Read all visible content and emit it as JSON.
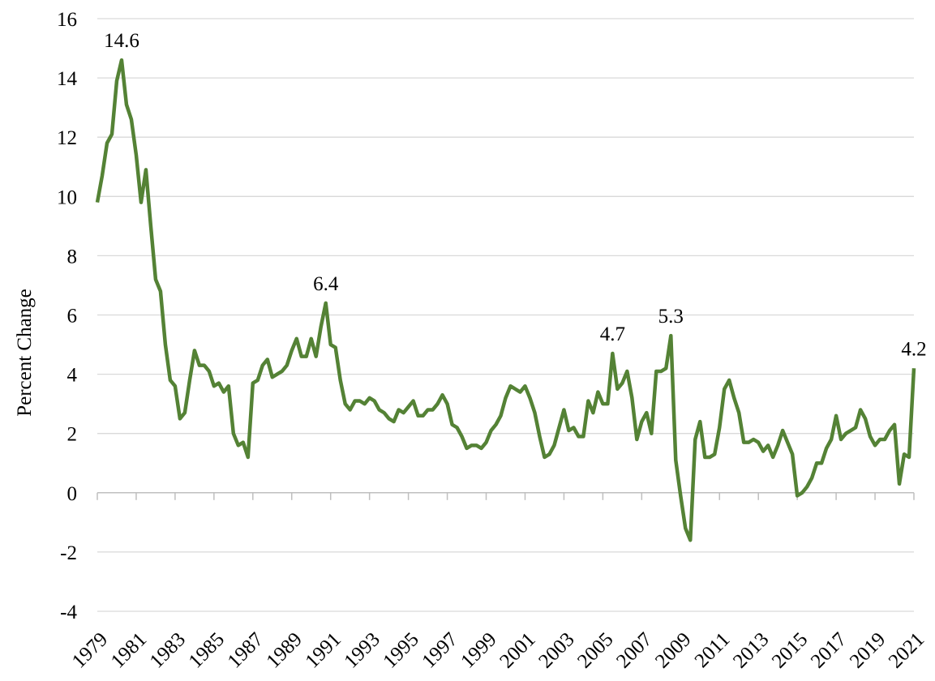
{
  "chart_data": {
    "type": "line",
    "y_label": "Percent Change",
    "x": [
      1979,
      1979.25,
      1979.5,
      1979.75,
      1980,
      1980.25,
      1980.5,
      1980.75,
      1981,
      1981.25,
      1981.5,
      1981.75,
      1982,
      1982.25,
      1982.5,
      1982.75,
      1983,
      1983.25,
      1983.5,
      1983.75,
      1984,
      1984.25,
      1984.5,
      1984.75,
      1985,
      1985.25,
      1985.5,
      1985.75,
      1986,
      1986.25,
      1986.5,
      1986.75,
      1987,
      1987.25,
      1987.5,
      1987.75,
      1988,
      1988.25,
      1988.5,
      1988.75,
      1989,
      1989.25,
      1989.5,
      1989.75,
      1990,
      1990.25,
      1990.5,
      1990.75,
      1991,
      1991.25,
      1991.5,
      1991.75,
      1992,
      1992.25,
      1992.5,
      1992.75,
      1993,
      1993.25,
      1993.5,
      1993.75,
      1994,
      1994.25,
      1994.5,
      1994.75,
      1995,
      1995.25,
      1995.5,
      1995.75,
      1996,
      1996.25,
      1996.5,
      1996.75,
      1997,
      1997.25,
      1997.5,
      1997.75,
      1998,
      1998.25,
      1998.5,
      1998.75,
      1999,
      1999.25,
      1999.5,
      1999.75,
      2000,
      2000.25,
      2000.5,
      2000.75,
      2001,
      2001.25,
      2001.5,
      2001.75,
      2002,
      2002.25,
      2002.5,
      2002.75,
      2003,
      2003.25,
      2003.5,
      2003.75,
      2004,
      2004.25,
      2004.5,
      2004.75,
      2005,
      2005.25,
      2005.5,
      2005.75,
      2006,
      2006.25,
      2006.5,
      2006.75,
      2007,
      2007.25,
      2007.5,
      2007.75,
      2008,
      2008.25,
      2008.5,
      2008.75,
      2009,
      2009.25,
      2009.5,
      2009.75,
      2010,
      2010.25,
      2010.5,
      2010.75,
      2011,
      2011.25,
      2011.5,
      2011.75,
      2012,
      2012.25,
      2012.5,
      2012.75,
      2013,
      2013.25,
      2013.5,
      2013.75,
      2014,
      2014.25,
      2014.5,
      2014.75,
      2015,
      2015.25,
      2015.5,
      2015.75,
      2016,
      2016.25,
      2016.5,
      2016.75,
      2017,
      2017.25,
      2017.5,
      2017.75,
      2018,
      2018.25,
      2018.5,
      2018.75,
      2019,
      2019.25,
      2019.5,
      2019.75,
      2020,
      2020.25,
      2020.5,
      2020.75,
      2021
    ],
    "series": [
      {
        "color": "#548235",
        "values": [
          9.8,
          10.7,
          11.8,
          12.1,
          13.9,
          14.6,
          13.1,
          12.6,
          11.4,
          9.8,
          10.9,
          9.0,
          7.2,
          6.8,
          5.0,
          3.8,
          3.6,
          2.5,
          2.7,
          3.8,
          4.8,
          4.3,
          4.3,
          4.1,
          3.6,
          3.7,
          3.4,
          3.6,
          2.0,
          1.6,
          1.7,
          1.2,
          3.7,
          3.8,
          4.3,
          4.5,
          3.9,
          4.0,
          4.1,
          4.3,
          4.8,
          5.2,
          4.6,
          4.6,
          5.2,
          4.6,
          5.6,
          6.4,
          5.0,
          4.9,
          3.8,
          3.0,
          2.8,
          3.1,
          3.1,
          3.0,
          3.2,
          3.1,
          2.8,
          2.7,
          2.5,
          2.4,
          2.8,
          2.7,
          2.9,
          3.1,
          2.6,
          2.6,
          2.8,
          2.8,
          3.0,
          3.3,
          3.0,
          2.3,
          2.2,
          1.9,
          1.5,
          1.6,
          1.6,
          1.5,
          1.7,
          2.1,
          2.3,
          2.6,
          3.2,
          3.6,
          3.5,
          3.4,
          3.6,
          3.2,
          2.7,
          1.9,
          1.2,
          1.3,
          1.6,
          2.2,
          2.8,
          2.1,
          2.2,
          1.9,
          1.9,
          3.1,
          2.7,
          3.4,
          3.0,
          3.0,
          4.7,
          3.5,
          3.7,
          4.1,
          3.2,
          1.8,
          2.4,
          2.7,
          2.0,
          4.1,
          4.1,
          4.2,
          5.3,
          1.1,
          -0.1,
          -1.2,
          -1.6,
          1.8,
          2.4,
          1.2,
          1.2,
          1.3,
          2.2,
          3.5,
          3.8,
          3.2,
          2.7,
          1.7,
          1.7,
          1.8,
          1.7,
          1.4,
          1.6,
          1.2,
          1.6,
          2.1,
          1.7,
          1.3,
          -0.1,
          0.0,
          0.2,
          0.5,
          1.0,
          1.0,
          1.5,
          1.8,
          2.6,
          1.8,
          2.0,
          2.1,
          2.2,
          2.8,
          2.5,
          1.9,
          1.6,
          1.8,
          1.8,
          2.1,
          2.3,
          0.3,
          1.3,
          1.2,
          4.2
        ]
      }
    ],
    "labeled_points": [
      5,
      47,
      106,
      118,
      168
    ],
    "xlim": [
      1979,
      2021
    ],
    "xticks": [
      1979,
      1981,
      1983,
      1985,
      1987,
      1989,
      1991,
      1993,
      1995,
      1997,
      1999,
      2001,
      2003,
      2005,
      2007,
      2009,
      2011,
      2013,
      2015,
      2017,
      2019,
      2021
    ],
    "ylim": [
      -4,
      16
    ],
    "yticks": [
      -4,
      -2,
      0,
      2,
      4,
      6,
      8,
      10,
      12,
      14,
      16
    ],
    "grid": true
  }
}
